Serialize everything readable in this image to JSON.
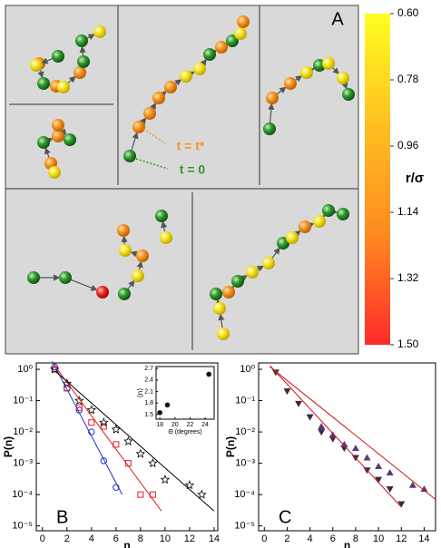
{
  "chart_data": [
    {
      "type": "colorbar",
      "title": "A",
      "label": "r/σ",
      "annotations": [
        "t = t*",
        "t = 0"
      ],
      "ylim": [
        0.6,
        1.5
      ],
      "inverted": true,
      "yticks": [
        {
          "value": 0.6,
          "label": "0.60"
        },
        0.78,
        0.96,
        1.14,
        1.32,
        {
          "value": 1.5,
          "label": "1.50"
        }
      ],
      "colors": [
        "#ffff20",
        "#ffc020",
        "#ff8a20",
        "#ff2a2a"
      ]
    },
    {
      "type": "scatter",
      "title": "B",
      "xlabel": "n",
      "ylabel": "P(n)",
      "log_y": true,
      "xlim": [
        -0.5,
        14.3
      ],
      "ylim": [
        7e-06,
        1.6
      ],
      "xticks": [
        0,
        2,
        4,
        6,
        8,
        10,
        12,
        14
      ],
      "yticks": [
        {
          "value": 1,
          "label": "10⁰"
        },
        {
          "value": 0.1,
          "label": "10⁻¹"
        },
        {
          "value": 0.01,
          "label": "10⁻²"
        },
        {
          "value": 0.001,
          "label": "10⁻³"
        },
        {
          "value": 0.0001,
          "label": "10⁻⁴"
        },
        {
          "value": 1e-05,
          "label": "10⁻⁵"
        }
      ],
      "series": [
        {
          "marker": "circle-open",
          "color": "#1f2fd0",
          "x": [
            1,
            2,
            3,
            4,
            5,
            6
          ],
          "values": [
            1.2,
            0.25,
            0.05,
            0.01,
            0.0012,
            0.00017
          ]
        },
        {
          "marker": "square-open",
          "color": "#e02020",
          "x": [
            1,
            2,
            3,
            4,
            5,
            6,
            7,
            8,
            9
          ],
          "values": [
            1.0,
            0.25,
            0.06,
            0.02,
            0.015,
            0.004,
            0.001,
            0.0001,
            0.0001
          ]
        },
        {
          "marker": "star-open",
          "color": "#000000",
          "x": [
            1,
            2,
            3,
            4,
            5,
            6,
            7,
            8,
            9,
            10,
            12,
            13
          ],
          "values": [
            1.0,
            0.35,
            0.1,
            0.05,
            0.02,
            0.012,
            0.005,
            0.002,
            0.001,
            0.0003,
            0.0002,
            0.0001
          ]
        },
        {
          "marker": "line",
          "color": "#1f2fd0",
          "x": [
            0.8,
            6.5
          ],
          "values": [
            1.8,
            0.0001
          ]
        },
        {
          "marker": "line",
          "color": "#e02020",
          "x": [
            1,
            9.7
          ],
          "values": [
            1.3,
            3e-05
          ]
        },
        {
          "marker": "line",
          "color": "#000000",
          "x": [
            1,
            14
          ],
          "values": [
            0.9,
            3e-05
          ]
        }
      ]
    },
    {
      "type": "scatter",
      "xlabel": "Θ (degrees)",
      "ylabel": "⟨n⟩",
      "xlim": [
        17.5,
        25.2
      ],
      "ylim": [
        1.38,
        2.75
      ],
      "xticks": [
        18,
        20,
        22,
        24
      ],
      "yticks": [
        1.5,
        1.8,
        2.1,
        2.4,
        2.7
      ],
      "series": [
        {
          "marker": "circle-filled",
          "color": "#111111",
          "x": [
            18,
            19,
            24.5
          ],
          "values": [
            1.55,
            1.75,
            2.55
          ]
        }
      ]
    },
    {
      "type": "scatter",
      "title": "C",
      "xlabel": "n",
      "ylabel": "P(n)",
      "log_y": true,
      "xlim": [
        -0.5,
        15
      ],
      "ylim": [
        7e-06,
        1.6
      ],
      "xticks": [
        0,
        2,
        4,
        6,
        8,
        10,
        12,
        14
      ],
      "yticks": [
        {
          "value": 1,
          "label": "10⁰"
        },
        {
          "value": 0.1,
          "label": "10⁻¹"
        },
        {
          "value": 0.01,
          "label": "10⁻²"
        },
        {
          "value": 0.001,
          "label": "10⁻³"
        },
        {
          "value": 0.0001,
          "label": "10⁻⁴"
        },
        {
          "value": 1e-05,
          "label": "10⁻⁵"
        }
      ],
      "series": [
        {
          "marker": "triangle-down",
          "color": "#3a2a40",
          "x": [
            1,
            2,
            3,
            4,
            5,
            6,
            7,
            8,
            9,
            10,
            11,
            12
          ],
          "values": [
            0.8,
            0.2,
            0.08,
            0.03,
            0.01,
            0.006,
            0.003,
            0.0015,
            0.0006,
            0.0003,
            0.00015,
            5e-05
          ]
        },
        {
          "marker": "triangle-up",
          "color": "#5a3a7a",
          "x": [
            5,
            6,
            7,
            8,
            9,
            10,
            11,
            13,
            14
          ],
          "values": [
            0.015,
            0.008,
            0.004,
            0.003,
            0.0015,
            0.0008,
            0.0005,
            0.0002,
            0.00015
          ]
        },
        {
          "marker": "line",
          "color": "#d01818",
          "x": [
            0.5,
            12
          ],
          "values": [
            1.3,
            4e-05
          ]
        },
        {
          "marker": "line",
          "color": "#d01818",
          "x": [
            0.5,
            15
          ],
          "values": [
            1.2,
            7e-05
          ]
        }
      ]
    }
  ]
}
